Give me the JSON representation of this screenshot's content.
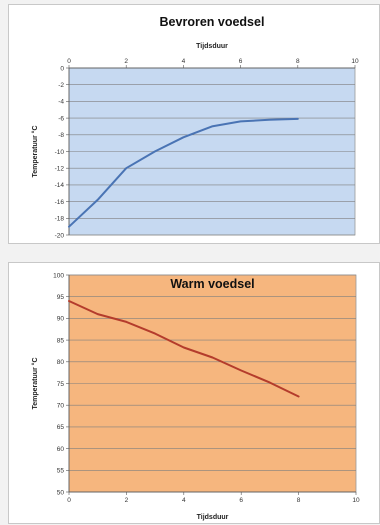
{
  "chart_data": [
    {
      "type": "line",
      "title": "Bevroren voedsel",
      "xlabel": "Tijdsduur",
      "ylabel": "Temperatuur °C",
      "xlim": [
        0,
        10
      ],
      "ylim": [
        -20,
        0
      ],
      "xticks": [
        0,
        2,
        4,
        6,
        8,
        10
      ],
      "yticks": [
        0,
        -2,
        -4,
        -6,
        -8,
        -10,
        -12,
        -14,
        -16,
        -18,
        -20
      ],
      "x_axis_position": "top",
      "grid": true,
      "plot_bg": "#c6d9f1",
      "line_color": "#4a74b4",
      "series": [
        {
          "x": [
            0,
            1,
            2,
            3,
            4,
            5,
            6,
            7,
            8
          ],
          "y": [
            -19,
            -15.8,
            -12,
            -10,
            -8.3,
            -7,
            -6.4,
            -6.2,
            -6.1
          ]
        }
      ]
    },
    {
      "type": "line",
      "title": "Warm voedsel",
      "xlabel": "Tijdsduur",
      "ylabel": "Temperatuur °C",
      "xlim": [
        0,
        10
      ],
      "ylim": [
        50,
        100
      ],
      "xticks": [
        0,
        2,
        4,
        6,
        8,
        10
      ],
      "yticks": [
        100,
        95,
        90,
        85,
        80,
        75,
        70,
        65,
        60,
        55,
        50
      ],
      "x_axis_position": "bottom",
      "grid": true,
      "plot_bg": "#f6b67e",
      "line_color": "#b43c2c",
      "series": [
        {
          "x": [
            0,
            1,
            2,
            3,
            4,
            5,
            6,
            7,
            8
          ],
          "y": [
            94,
            91,
            89.2,
            86.5,
            83.3,
            81,
            78,
            75.2,
            72
          ]
        }
      ]
    }
  ]
}
